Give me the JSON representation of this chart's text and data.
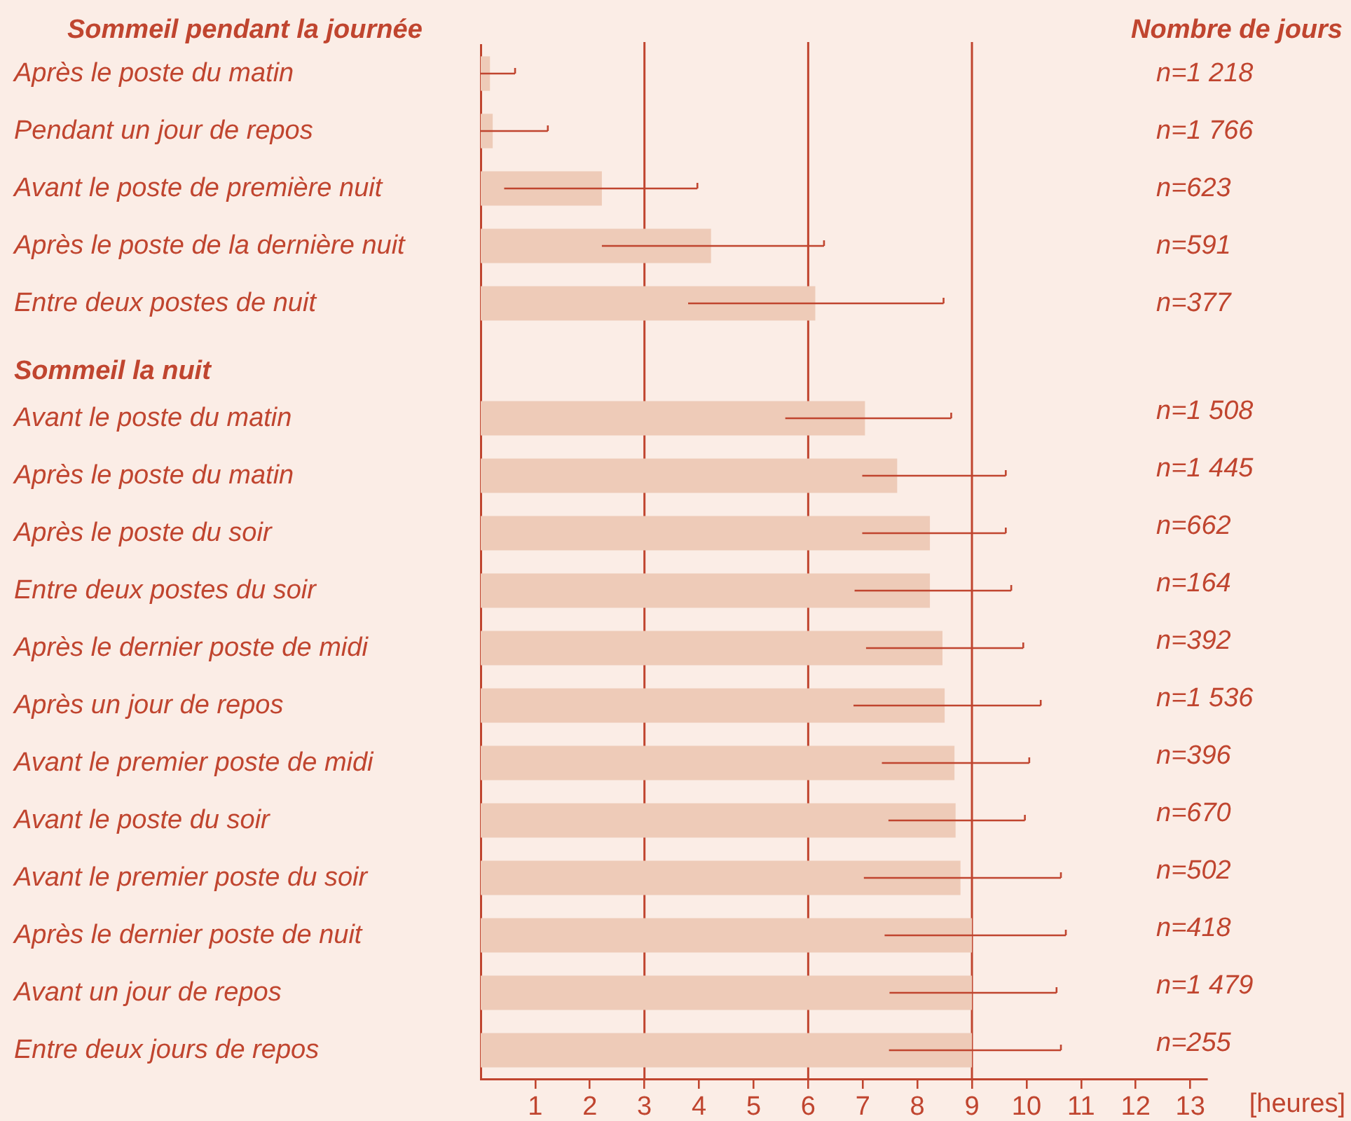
{
  "chart_data": {
    "type": "bar",
    "orientation": "horizontal",
    "categories": [
      "Après le poste du matin",
      "Pendant un jour de repos",
      "Avant le poste de première nuit",
      "Après le poste de la dernière nuit",
      "Entre deux postes de nuit",
      "Sommeil la nuit",
      "Avant le poste du matin",
      "Après le poste du matin",
      "Après le poste du soir",
      "Entre deux postes du soir",
      "Après le dernier poste de midi",
      "Après un jour de repos",
      "Avant le premier poste de midi",
      "Avant le poste du soir",
      "Avant le premier poste du soir",
      "Après le dernier poste de nuit",
      "Avant un jour de repos",
      "Entre deux jours de repos"
    ],
    "values": [
      0.17,
      0.22,
      2.22,
      4.22,
      6.13,
      null,
      7.04,
      7.63,
      8.23,
      8.23,
      8.46,
      8.5,
      8.68,
      8.7,
      8.79,
      9.0,
      9.0,
      9.0
    ],
    "errors": [
      [
        0,
        0.63
      ],
      [
        0,
        1.23
      ],
      [
        0.43,
        3.97
      ],
      [
        2.22,
        6.29
      ],
      [
        3.8,
        8.48
      ],
      null,
      [
        5.58,
        8.62
      ],
      [
        6.99,
        9.62
      ],
      [
        6.99,
        9.62
      ],
      [
        6.85,
        9.72
      ],
      [
        7.06,
        9.94
      ],
      [
        6.83,
        10.26
      ],
      [
        7.35,
        10.05
      ],
      [
        7.47,
        9.97
      ],
      [
        7.02,
        10.63
      ],
      [
        7.4,
        10.72
      ],
      [
        7.49,
        10.55
      ],
      [
        7.48,
        10.63
      ]
    ],
    "color": "#eecbb8",
    "xlim": [
      0,
      13.3
    ],
    "xticks": [
      1,
      2,
      3,
      4,
      5,
      6,
      7,
      8,
      9,
      10,
      11,
      12,
      13
    ],
    "xlabel": "[heures]",
    "ref_lines": [
      {
        "axis": "x",
        "value": 3,
        "color": "#c0452f"
      },
      {
        "axis": "x",
        "value": 6,
        "color": "#c0452f"
      },
      {
        "axis": "x",
        "value": 9,
        "color": "#c0452f"
      }
    ],
    "annotations": [
      "Sommeil pendant la journée",
      "Nombre de jours",
      "n=1 218",
      "n=1 766",
      "n=623",
      "n=591",
      "n=377",
      "n=1 508",
      "n=1 445",
      "n=662",
      "n=164",
      "n=392",
      "n=1 536",
      "n=396",
      "n=670",
      "n=502",
      "n=418",
      "n=1 479",
      "n=255"
    ]
  }
}
